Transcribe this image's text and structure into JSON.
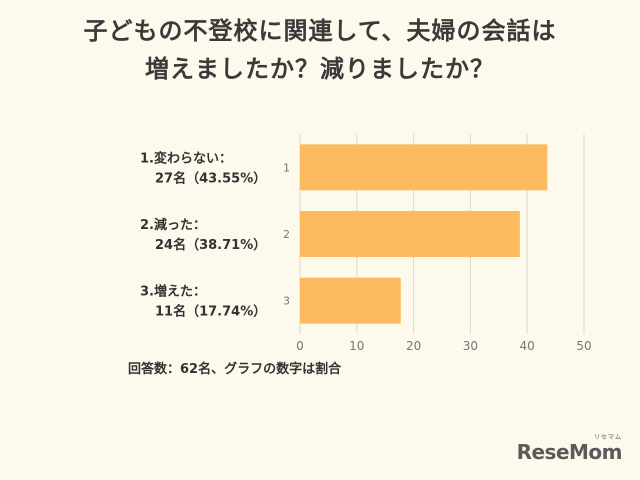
{
  "title_lines": [
    "子どもの不登校に関連して、夫婦の会話は",
    "増えましたか？減りましたか？"
  ],
  "chart_data": {
    "type": "bar",
    "orientation": "horizontal",
    "categories": [
      {
        "label_line1": "1.変わらない：",
        "label_line2": "27名（43.55%）",
        "index_label": "1"
      },
      {
        "label_line1": "2.減った：",
        "label_line2": "24名（38.71%）",
        "index_label": "2"
      },
      {
        "label_line1": "3.増えた：",
        "label_line2": "11名（17.74%）",
        "index_label": "3"
      }
    ],
    "values": [
      43.55,
      38.71,
      17.74
    ],
    "xlim": [
      0,
      50
    ],
    "xticks": [
      "0",
      "10",
      "20",
      "30",
      "40",
      "50"
    ],
    "grid": true,
    "bar_color": "#fdbb5f"
  },
  "note": "回答数：62名、グラフの数字は割合",
  "logo": {
    "text": "ReseMom",
    "sup": "リセマム"
  }
}
